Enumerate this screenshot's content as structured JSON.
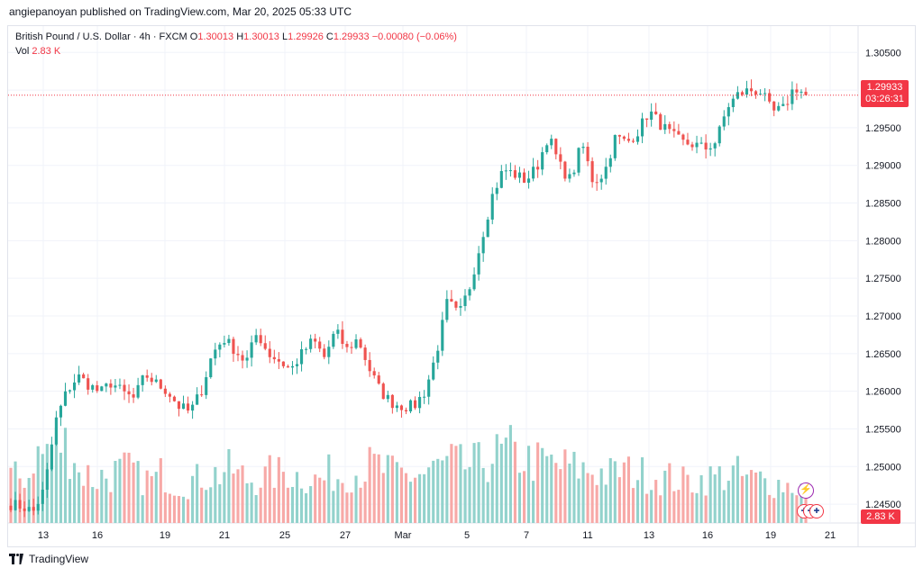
{
  "header": {
    "publish_line": "angiepanoyan published on TradingView.com, Mar 20, 2025 05:33 UTC"
  },
  "legend": {
    "symbol": "British Pound / U.S. Dollar · 4h · FXCM",
    "o_label": "O",
    "o_value": "1.30013",
    "h_label": "H",
    "h_value": "1.30013",
    "l_label": "L",
    "l_value": "1.29926",
    "c_label": "C",
    "c_value": "1.29933",
    "change": "−0.00080 (−0.06%)",
    "vol_label": "Vol",
    "vol_value": "2.83 K"
  },
  "price_tag": {
    "price": "1.29933",
    "countdown": "03:26:31"
  },
  "vol_tag": "2.83 K",
  "footer": {
    "brand": "TradingView"
  },
  "icons": {
    "bolt": "lightning-icon",
    "flags": "gb-flag-icon"
  },
  "colors": {
    "up": "#26a69a",
    "down": "#ef5350",
    "vol_up": "#92d2cc",
    "vol_down": "#f7a9a7",
    "grid": "#f0f3fa",
    "price_line": "#f23645"
  },
  "chart_data": {
    "type": "candlestick",
    "title": "British Pound / U.S. Dollar · 4h · FXCM",
    "ylim": [
      1.2425,
      1.3085
    ],
    "y_ticks": [
      "1.24500",
      "1.25000",
      "1.25500",
      "1.26000",
      "1.26500",
      "1.27000",
      "1.27500",
      "1.28000",
      "1.28500",
      "1.29000",
      "1.29500",
      "1.30000",
      "1.30500"
    ],
    "x_ticks": [
      "13",
      "16",
      "19",
      "21",
      "25",
      "27",
      "Mar",
      "5",
      "7",
      "11",
      "13",
      "16",
      "19",
      "21"
    ],
    "last_price": 1.29933,
    "close_waypoints": [
      1.245,
      1.2447,
      1.244,
      1.247,
      1.256,
      1.26,
      1.262,
      1.2608,
      1.2598,
      1.2612,
      1.2598,
      1.259,
      1.2622,
      1.261,
      1.26,
      1.258,
      1.2572,
      1.26,
      1.265,
      1.267,
      1.2655,
      1.2638,
      1.2678,
      1.265,
      1.264,
      1.2628,
      1.265,
      1.2668,
      1.2645,
      1.268,
      1.2655,
      1.267,
      1.263,
      1.26,
      1.2585,
      1.258,
      1.258,
      1.26,
      1.265,
      1.272,
      1.27,
      1.274,
      1.28,
      1.286,
      1.2895,
      1.2888,
      1.288,
      1.2898,
      1.294,
      1.29,
      1.288,
      1.293,
      1.2878,
      1.289,
      1.2938,
      1.293,
      1.2945,
      1.2972,
      1.2955,
      1.294,
      1.293,
      1.2928,
      1.2922,
      1.2932,
      1.2978,
      1.2995,
      1.3,
      1.2998,
      1.297,
      1.2975,
      1.3005,
      1.2993
    ],
    "volumes": [
      240,
      250,
      360,
      400,
      420,
      380,
      260,
      230,
      250,
      270,
      280,
      240,
      230,
      260,
      220,
      210,
      230,
      250,
      260,
      280,
      250,
      230,
      240,
      260,
      270,
      250,
      240,
      230,
      260,
      250,
      270,
      280,
      300,
      280,
      260,
      250,
      260,
      280,
      300,
      320,
      300,
      310,
      330,
      360,
      380,
      350,
      330,
      320,
      310,
      300,
      290,
      280,
      270,
      260,
      280,
      270,
      260,
      250,
      240,
      230,
      220,
      230,
      240,
      250,
      260,
      240,
      230,
      220,
      210,
      200,
      190,
      170
    ],
    "volume_unit": "arbitrary"
  }
}
